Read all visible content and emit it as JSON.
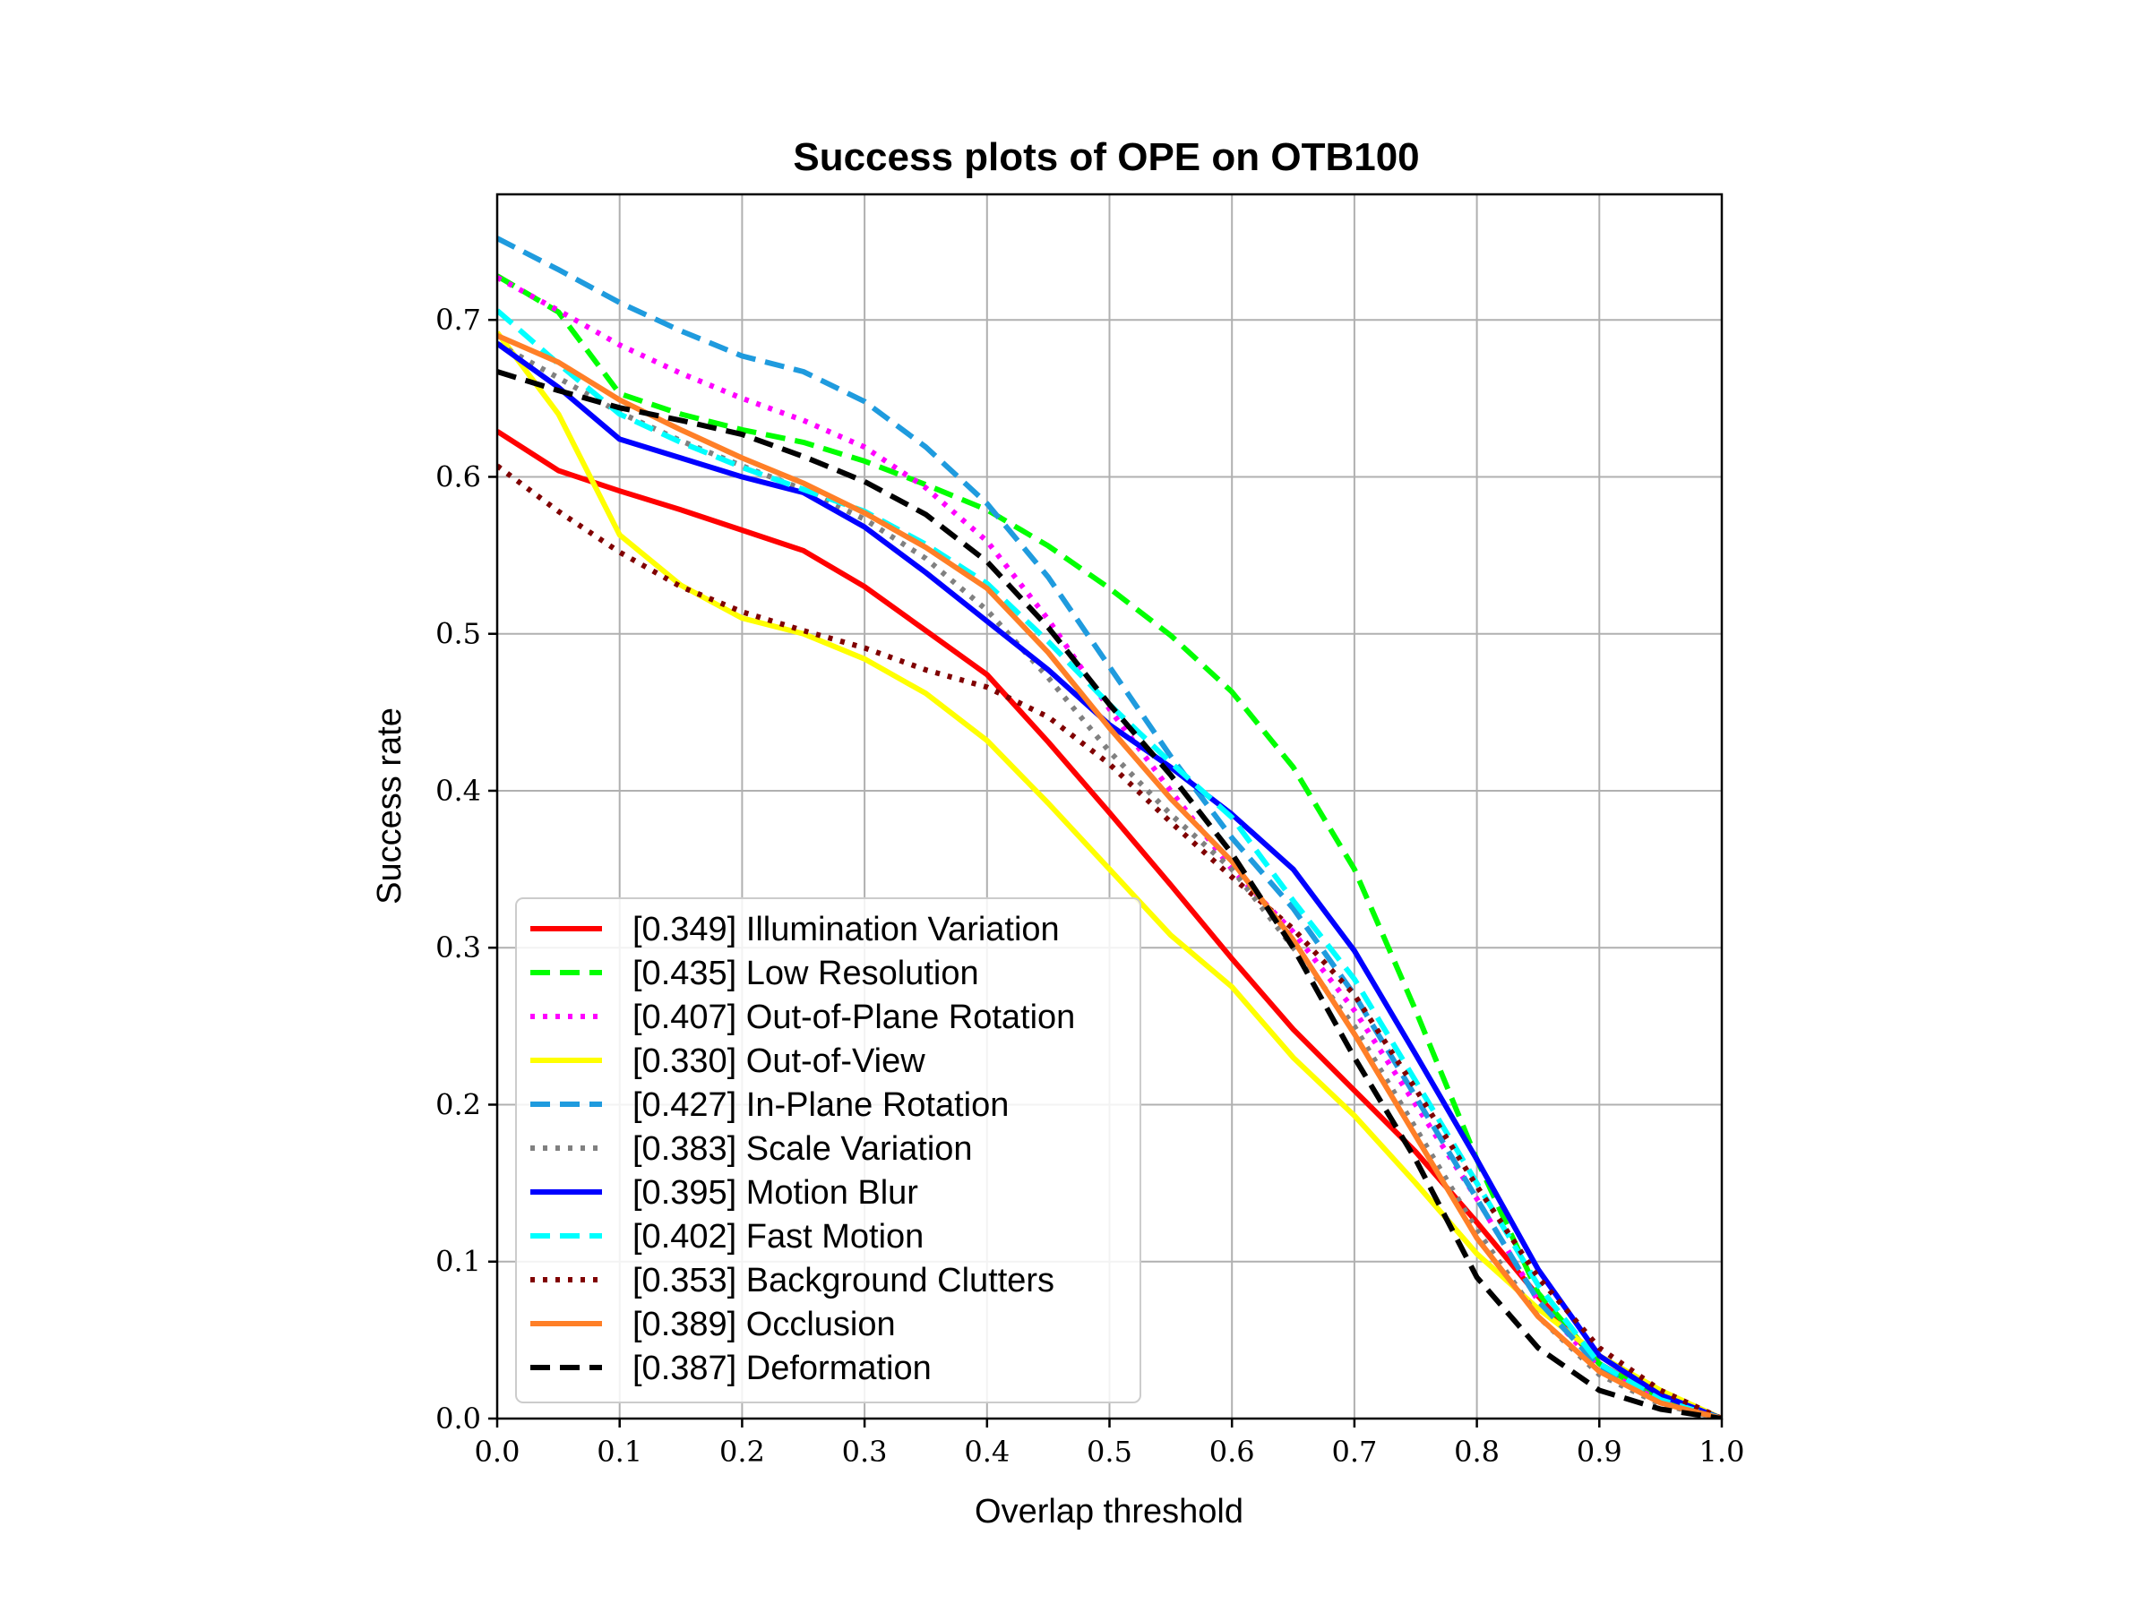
{
  "chart_data": {
    "type": "line",
    "title": "Success plots of OPE on OTB100",
    "xlabel": "Overlap threshold",
    "ylabel": "Success rate",
    "xlim": [
      0.0,
      1.0
    ],
    "ylim": [
      0.0,
      0.78
    ],
    "xticks": [
      "0.0",
      "0.1",
      "0.2",
      "0.3",
      "0.4",
      "0.5",
      "0.6",
      "0.7",
      "0.8",
      "0.9",
      "1.0"
    ],
    "yticks": [
      "0.0",
      "0.1",
      "0.2",
      "0.3",
      "0.4",
      "0.5",
      "0.6",
      "0.7"
    ],
    "grid": true,
    "legend_position": "lower-left",
    "x": [
      0.0,
      0.05,
      0.1,
      0.15,
      0.2,
      0.25,
      0.3,
      0.35,
      0.4,
      0.45,
      0.5,
      0.55,
      0.6,
      0.65,
      0.7,
      0.75,
      0.8,
      0.85,
      0.9,
      0.95,
      1.0
    ],
    "series": [
      {
        "name": "[0.349] Illumination Variation",
        "color": "#ff0000",
        "dash": "solid",
        "values": [
          0.629,
          0.604,
          0.591,
          0.579,
          0.566,
          0.553,
          0.53,
          0.502,
          0.474,
          0.431,
          0.386,
          0.34,
          0.293,
          0.248,
          0.209,
          0.17,
          0.125,
          0.078,
          0.035,
          0.013,
          0.0
        ]
      },
      {
        "name": "[0.435] Low Resolution",
        "color": "#00ff00",
        "dash": "dashed",
        "values": [
          0.728,
          0.705,
          0.653,
          0.64,
          0.63,
          0.622,
          0.61,
          0.595,
          0.579,
          0.556,
          0.529,
          0.499,
          0.463,
          0.415,
          0.35,
          0.26,
          0.165,
          0.08,
          0.035,
          0.012,
          0.0
        ]
      },
      {
        "name": "[0.407] Out-of-Plane Rotation",
        "color": "#ff00ff",
        "dash": "dotted",
        "values": [
          0.727,
          0.706,
          0.684,
          0.666,
          0.65,
          0.636,
          0.619,
          0.593,
          0.559,
          0.509,
          0.452,
          0.4,
          0.35,
          0.31,
          0.26,
          0.2,
          0.14,
          0.075,
          0.032,
          0.011,
          0.0
        ]
      },
      {
        "name": "[0.330] Out-of-View",
        "color": "#ffff00",
        "dash": "solid",
        "values": [
          0.692,
          0.64,
          0.563,
          0.531,
          0.51,
          0.5,
          0.484,
          0.462,
          0.432,
          0.392,
          0.35,
          0.308,
          0.275,
          0.23,
          0.193,
          0.15,
          0.105,
          0.07,
          0.04,
          0.018,
          0.0
        ]
      },
      {
        "name": "[0.427] In-Plane Rotation",
        "color": "#1f9bde",
        "dash": "dashed",
        "values": [
          0.752,
          0.732,
          0.711,
          0.693,
          0.677,
          0.667,
          0.648,
          0.619,
          0.583,
          0.536,
          0.479,
          0.422,
          0.37,
          0.325,
          0.27,
          0.205,
          0.14,
          0.075,
          0.033,
          0.011,
          0.0
        ]
      },
      {
        "name": "[0.383] Scale Variation",
        "color": "#808080",
        "dash": "dotted",
        "values": [
          0.685,
          0.663,
          0.641,
          0.623,
          0.607,
          0.592,
          0.573,
          0.548,
          0.515,
          0.472,
          0.425,
          0.385,
          0.35,
          0.3,
          0.25,
          0.185,
          0.12,
          0.065,
          0.028,
          0.009,
          0.0
        ]
      },
      {
        "name": "[0.395] Motion Blur",
        "color": "#0000ff",
        "dash": "solid",
        "values": [
          0.685,
          0.657,
          0.624,
          0.612,
          0.6,
          0.59,
          0.568,
          0.539,
          0.508,
          0.477,
          0.442,
          0.415,
          0.385,
          0.35,
          0.298,
          0.232,
          0.165,
          0.095,
          0.04,
          0.015,
          0.0
        ]
      },
      {
        "name": "[0.402] Fast Motion",
        "color": "#00ffff",
        "dash": "dashed",
        "values": [
          0.706,
          0.672,
          0.64,
          0.622,
          0.606,
          0.592,
          0.578,
          0.557,
          0.532,
          0.495,
          0.455,
          0.418,
          0.383,
          0.33,
          0.28,
          0.215,
          0.15,
          0.085,
          0.035,
          0.012,
          0.0
        ]
      },
      {
        "name": "[0.353] Background Clutters",
        "color": "#800000",
        "dash": "dotted",
        "values": [
          0.607,
          0.578,
          0.552,
          0.53,
          0.514,
          0.502,
          0.491,
          0.477,
          0.466,
          0.447,
          0.417,
          0.38,
          0.345,
          0.312,
          0.27,
          0.21,
          0.148,
          0.09,
          0.045,
          0.018,
          0.0
        ]
      },
      {
        "name": "[0.389] Occlusion",
        "color": "#ff7f27",
        "dash": "solid",
        "values": [
          0.69,
          0.673,
          0.649,
          0.63,
          0.612,
          0.596,
          0.577,
          0.555,
          0.529,
          0.488,
          0.44,
          0.395,
          0.355,
          0.305,
          0.245,
          0.18,
          0.115,
          0.065,
          0.03,
          0.01,
          0.0
        ]
      },
      {
        "name": "[0.387] Deformation",
        "color": "#000000",
        "dash": "dashed",
        "values": [
          0.667,
          0.655,
          0.644,
          0.636,
          0.627,
          0.613,
          0.597,
          0.576,
          0.546,
          0.504,
          0.455,
          0.41,
          0.36,
          0.3,
          0.23,
          0.165,
          0.09,
          0.045,
          0.018,
          0.006,
          0.0
        ]
      }
    ]
  }
}
